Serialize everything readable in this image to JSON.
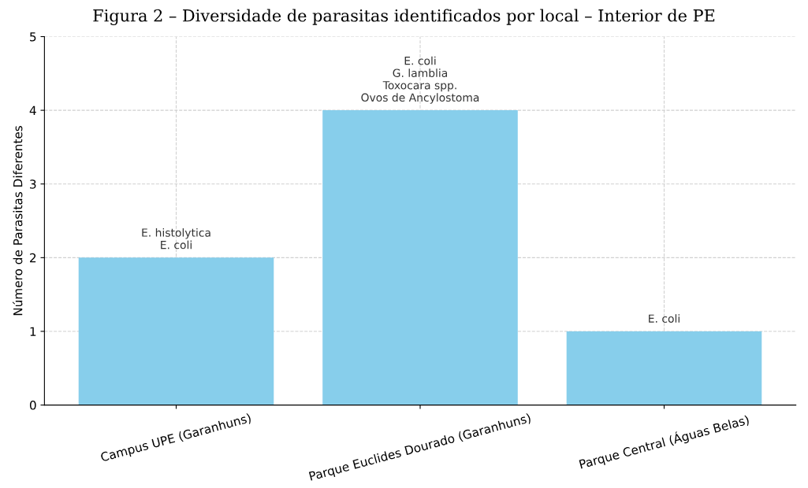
{
  "chart_data": {
    "type": "bar",
    "title": "Figura 2 – Diversidade de parasitas identificados por local – Interior de PE",
    "ylabel": "Número de Parasitas Diferentes",
    "categories": [
      "Campus UPE (Garanhuns)",
      "Parque Euclides Dourado (Garanhuns)",
      "Parque Central (Águas Belas)"
    ],
    "values": [
      2,
      4,
      1
    ],
    "color": "#87ceeb",
    "ylim": [
      0,
      5
    ],
    "yticks": [
      0,
      1,
      2,
      3,
      4,
      5
    ],
    "grid": true,
    "annotations": [
      {
        "text": "E. histolytica\nE. coli",
        "x": "Campus UPE (Garanhuns)",
        "y": 2
      },
      {
        "text": "E. coli\nG. lamblia\nToxocara spp.\nOvos de Ancylostoma",
        "x": "Parque Euclides Dourado (Garanhuns)",
        "y": 4
      },
      {
        "text": "E. coli",
        "x": "Parque Central (Águas Belas)",
        "y": 1
      }
    ]
  }
}
